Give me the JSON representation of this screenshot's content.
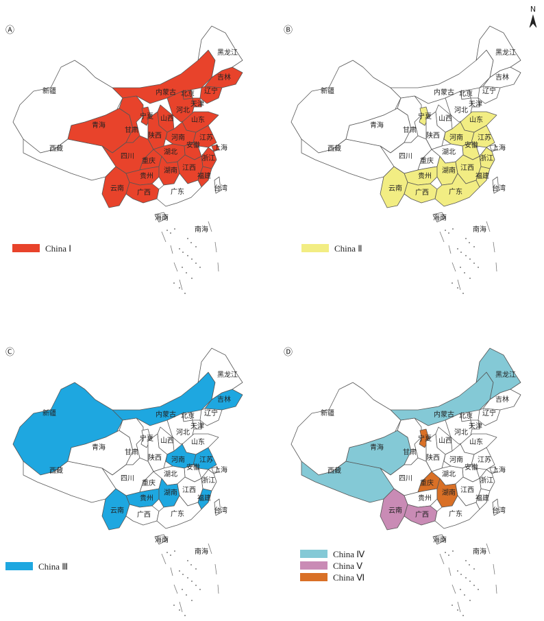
{
  "north_label": "N",
  "legends": {
    "china1": "China Ⅰ",
    "china2": "China Ⅱ",
    "china3": "China Ⅲ",
    "china4": "China Ⅳ",
    "china5": "China Ⅴ",
    "china6": "China Ⅵ"
  },
  "colors": {
    "china1": "#e8432b",
    "china2": "#f2ed83",
    "china3": "#1ea7e0",
    "china4": "#84c9d6",
    "china5": "#c98bb5",
    "china6": "#d97026",
    "outline": "#555555",
    "unshaded": "#ffffff"
  },
  "panels": [
    {
      "id": "A",
      "mark": "Ⓐ",
      "provinces": {
        "xinjiang": "新疆",
        "xizang": "西藏",
        "qinghai": "青海",
        "gansu": "甘肃",
        "ningxia": "宁夏",
        "neimenggu": "内蒙古",
        "heilongjiang": "黑龙江",
        "jilin": "吉林",
        "liaoning": "辽宁",
        "beijing": "北京",
        "tianjin": "天津",
        "hebei": "河北",
        "shanxi": "山西",
        "shandong": "山东",
        "shaanxi": "陕西",
        "henan": "河南",
        "jiangsu": "江苏",
        "anhui": "安徽",
        "shanghai": "上海",
        "sichuan": "四川",
        "chongqing": "重庆",
        "hubei": "湖北",
        "zhejiang": "浙江",
        "guizhou": "贵州",
        "hunan": "湖南",
        "jiangxi": "江西",
        "fujian": "福建",
        "yunnan": "云南",
        "guangxi": "广西",
        "guangdong": "广东",
        "taiwan": "台湾",
        "hainan": "海南",
        "nanhai": "南海"
      },
      "shaded": {
        "china1": [
          "neimenggu",
          "jilin",
          "liaoning",
          "beijing",
          "tianjin",
          "hebei",
          "shanxi",
          "shandong",
          "qinghai",
          "gansu",
          "ningxia",
          "shaanxi",
          "henan",
          "jiangsu",
          "anhui",
          "shanghai",
          "sichuan",
          "chongqing",
          "hubei",
          "zhejiang",
          "guizhou",
          "hunan",
          "jiangxi",
          "fujian",
          "yunnan",
          "guangxi"
        ]
      },
      "legend": [
        "china1"
      ]
    },
    {
      "id": "B",
      "mark": "Ⓑ",
      "provinces": {
        "xinjiang": "新疆",
        "xizang": "西藏",
        "qinghai": "青海",
        "gansu": "甘肃",
        "ningxia": "宁夏",
        "neimenggu": "内蒙古",
        "heilongjiang": "黑龙江",
        "jilin": "吉林",
        "liaoning": "辽宁",
        "beijing": "北京",
        "tianjin": "天津",
        "hebei": "河北",
        "shanxi": "山西",
        "shandong": "山东",
        "shaanxi": "陕西",
        "henan": "河南",
        "jiangsu": "江苏",
        "anhui": "安徽",
        "shanghai": "上海",
        "sichuan": "四川",
        "chongqing": "重庆",
        "hubei": "湖北",
        "zhejiang": "浙江",
        "guizhou": "贵州",
        "hunan": "湖南",
        "jiangxi": "江西",
        "fujian": "福建",
        "yunnan": "云南",
        "guangxi": "广西",
        "guangdong": "广东",
        "taiwan": "台湾",
        "hainan": "海南",
        "nanhai": "南海"
      },
      "shaded": {
        "china2": [
          "ningxia",
          "shandong",
          "henan",
          "jiangsu",
          "anhui",
          "zhejiang",
          "guizhou",
          "hunan",
          "jiangxi",
          "fujian",
          "yunnan",
          "guangxi",
          "guangdong"
        ]
      },
      "legend": [
        "china2"
      ]
    },
    {
      "id": "C",
      "mark": "Ⓒ",
      "provinces": {
        "xinjiang": "新疆",
        "xizang": "西藏",
        "qinghai": "青海",
        "gansu": "甘肃",
        "ningxia": "宁夏",
        "neimenggu": "内蒙古",
        "heilongjiang": "黑龙江",
        "jilin": "吉林",
        "liaoning": "辽宁",
        "beijing": "北京",
        "tianjin": "天津",
        "hebei": "河北",
        "shanxi": "山西",
        "shandong": "山东",
        "shaanxi": "陕西",
        "henan": "河南",
        "jiangsu": "江苏",
        "anhui": "安徽",
        "shanghai": "上海",
        "sichuan": "四川",
        "chongqing": "重庆",
        "hubei": "湖北",
        "zhejiang": "浙江",
        "guizhou": "贵州",
        "hunan": "湖南",
        "jiangxi": "江西",
        "fujian": "福建",
        "yunnan": "云南",
        "guangxi": "广西",
        "guangdong": "广东",
        "taiwan": "台湾",
        "hainan": "海南",
        "nanhai": "南海"
      },
      "shaded": {
        "china3": [
          "xinjiang",
          "neimenggu",
          "jilin",
          "henan",
          "jiangsu",
          "guizhou",
          "hunan",
          "fujian",
          "yunnan"
        ]
      },
      "legend": [
        "china3"
      ]
    },
    {
      "id": "D",
      "mark": "Ⓓ",
      "provinces": {
        "xinjiang": "新疆",
        "xizang": "西藏",
        "qinghai": "青海",
        "gansu": "甘肃",
        "ningxia": "宁夏",
        "neimenggu": "内蒙古",
        "heilongjiang": "黑龙江",
        "jilin": "吉林",
        "liaoning": "辽宁",
        "beijing": "北京",
        "tianjin": "天津",
        "hebei": "河北",
        "shanxi": "山西",
        "shandong": "山东",
        "shaanxi": "陕西",
        "henan": "河南",
        "jiangsu": "江苏",
        "anhui": "安徽",
        "shanghai": "上海",
        "sichuan": "四川",
        "chongqing": "重庆",
        "hubei": "湖北",
        "zhejiang": "浙江",
        "guizhou": "贵州",
        "hunan": "湖南",
        "jiangxi": "江西",
        "fujian": "福建",
        "yunnan": "云南",
        "guangxi": "广西",
        "guangdong": "广东",
        "taiwan": "台湾",
        "hainan": "海南",
        "nanhai": "南海"
      },
      "shaded": {
        "china4": [
          "heilongjiang",
          "neimenggu",
          "qinghai",
          "xizang"
        ],
        "china5": [
          "yunnan",
          "guangxi"
        ],
        "china6": [
          "ningxia",
          "chongqing",
          "hunan"
        ]
      },
      "legend": [
        "china4",
        "china5",
        "china6"
      ]
    }
  ]
}
